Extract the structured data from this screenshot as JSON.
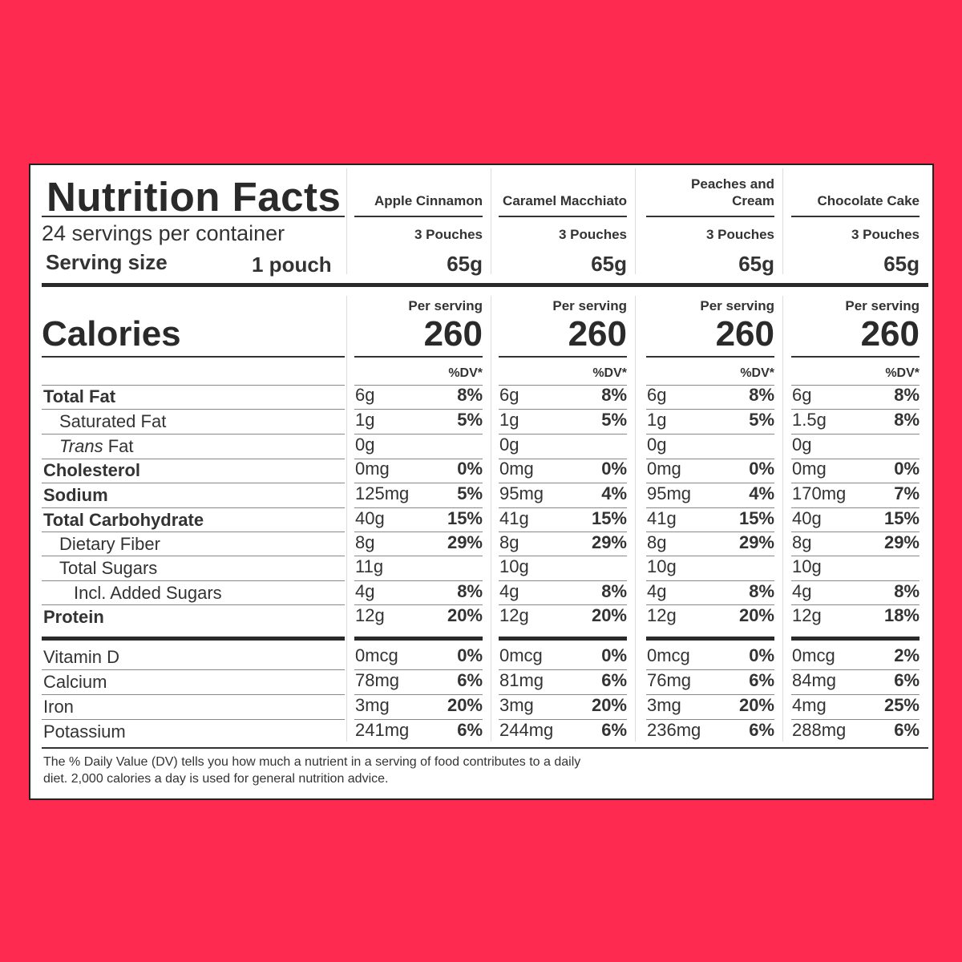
{
  "label": {
    "title": "Nutrition Facts",
    "servings_per_container": "24 servings per container",
    "serving_size_label": "Serving size",
    "serving_size_value": "1 pouch",
    "calories_label": "Calories",
    "per_serving_label": "Per serving",
    "dv_header": "%DV*",
    "footnote": "The % Daily Value (DV) tells you how much a nutrient in a serving of food contributes to a daily diet. 2,000 calories a day is used for general nutrition advice."
  },
  "nutrients": [
    {
      "name": "Total Fat",
      "bold": true,
      "indent": 0
    },
    {
      "name": "Saturated Fat",
      "bold": false,
      "indent": 1
    },
    {
      "name": "Trans",
      "suffix": " Fat",
      "italic_prefix": true,
      "bold": false,
      "indent": 1
    },
    {
      "name": "Cholesterol",
      "bold": true,
      "indent": 0
    },
    {
      "name": "Sodium",
      "bold": true,
      "indent": 0
    },
    {
      "name": "Total Carbohydrate",
      "bold": true,
      "indent": 0
    },
    {
      "name": "Dietary Fiber",
      "bold": false,
      "indent": 1
    },
    {
      "name": "Total Sugars",
      "bold": false,
      "indent": 1
    },
    {
      "name": "Incl. Added Sugars",
      "bold": false,
      "indent": 2
    },
    {
      "name": "Protein",
      "bold": true,
      "indent": 0
    },
    {
      "name": "Vitamin D",
      "bold": false,
      "indent": 0
    },
    {
      "name": "Calcium",
      "bold": false,
      "indent": 0
    },
    {
      "name": "Iron",
      "bold": false,
      "indent": 0
    },
    {
      "name": "Potassium",
      "bold": false,
      "indent": 0
    }
  ],
  "products": [
    {
      "name_lines": [
        "",
        "Apple Cinnamon"
      ],
      "pouches": "3 Pouches",
      "grams": "65g",
      "calories": "260",
      "values": [
        [
          "6g",
          "8%"
        ],
        [
          "1g",
          "5%"
        ],
        [
          "0g",
          ""
        ],
        [
          "0mg",
          "0%"
        ],
        [
          "125mg",
          "5%"
        ],
        [
          "40g",
          "15%"
        ],
        [
          "8g",
          "29%"
        ],
        [
          "11g",
          ""
        ],
        [
          "4g",
          "8%"
        ],
        [
          "12g",
          "20%"
        ],
        [
          "0mcg",
          "0%"
        ],
        [
          "78mg",
          "6%"
        ],
        [
          "3mg",
          "20%"
        ],
        [
          "241mg",
          "6%"
        ]
      ]
    },
    {
      "name_lines": [
        "",
        "Caramel Macchiato"
      ],
      "pouches": "3 Pouches",
      "grams": "65g",
      "calories": "260",
      "values": [
        [
          "6g",
          "8%"
        ],
        [
          "1g",
          "5%"
        ],
        [
          "0g",
          ""
        ],
        [
          "0mg",
          "0%"
        ],
        [
          "95mg",
          "4%"
        ],
        [
          "41g",
          "15%"
        ],
        [
          "8g",
          "29%"
        ],
        [
          "10g",
          ""
        ],
        [
          "4g",
          "8%"
        ],
        [
          "12g",
          "20%"
        ],
        [
          "0mcg",
          "0%"
        ],
        [
          "81mg",
          "6%"
        ],
        [
          "3mg",
          "20%"
        ],
        [
          "244mg",
          "6%"
        ]
      ]
    },
    {
      "name_lines": [
        "Peaches and",
        "Cream"
      ],
      "pouches": "3 Pouches",
      "grams": "65g",
      "calories": "260",
      "values": [
        [
          "6g",
          "8%"
        ],
        [
          "1g",
          "5%"
        ],
        [
          "0g",
          ""
        ],
        [
          "0mg",
          "0%"
        ],
        [
          "95mg",
          "4%"
        ],
        [
          "41g",
          "15%"
        ],
        [
          "8g",
          "29%"
        ],
        [
          "10g",
          ""
        ],
        [
          "4g",
          "8%"
        ],
        [
          "12g",
          "20%"
        ],
        [
          "0mcg",
          "0%"
        ],
        [
          "76mg",
          "6%"
        ],
        [
          "3mg",
          "20%"
        ],
        [
          "236mg",
          "6%"
        ]
      ]
    },
    {
      "name_lines": [
        "",
        "Chocolate Cake"
      ],
      "pouches": "3 Pouches",
      "grams": "65g",
      "calories": "260",
      "values": [
        [
          "6g",
          "8%"
        ],
        [
          "1.5g",
          "8%"
        ],
        [
          "0g",
          ""
        ],
        [
          "0mg",
          "0%"
        ],
        [
          "170mg",
          "7%"
        ],
        [
          "40g",
          "15%"
        ],
        [
          "8g",
          "29%"
        ],
        [
          "10g",
          ""
        ],
        [
          "4g",
          "8%"
        ],
        [
          "12g",
          "18%"
        ],
        [
          "0mcg",
          "2%"
        ],
        [
          "84mg",
          "6%"
        ],
        [
          "4mg",
          "25%"
        ],
        [
          "288mg",
          "6%"
        ]
      ]
    }
  ]
}
